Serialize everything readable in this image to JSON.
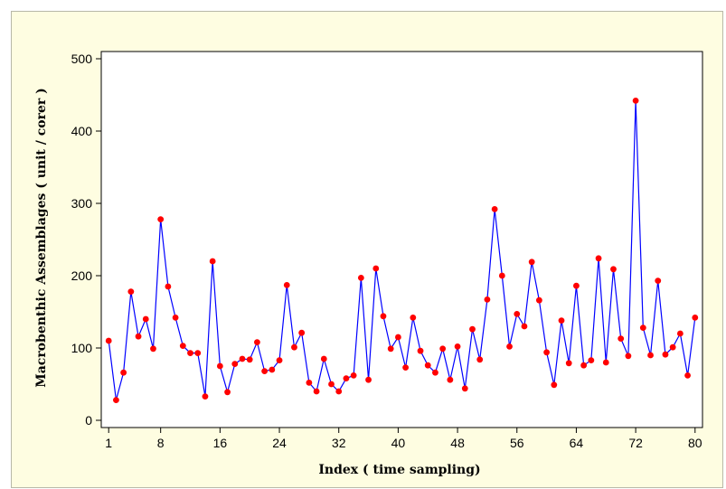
{
  "chart_data": {
    "type": "line",
    "title": "",
    "xlabel": "Index ( time sampling)",
    "ylabel": "Macrobenthic Assemblages ( unit / corer )",
    "xlim": [
      0,
      81
    ],
    "ylim": [
      -10,
      510
    ],
    "x_ticks": [
      1,
      8,
      16,
      24,
      32,
      40,
      48,
      56,
      64,
      72,
      80
    ],
    "y_ticks": [
      0,
      100,
      200,
      300,
      400,
      500
    ],
    "grid": false,
    "legend": "none",
    "series": [
      {
        "line_color": "#0000ff",
        "marker_color": "#ff0000",
        "x": [
          1,
          2,
          3,
          4,
          5,
          6,
          7,
          8,
          9,
          10,
          11,
          12,
          13,
          14,
          15,
          16,
          17,
          18,
          19,
          20,
          21,
          22,
          23,
          24,
          25,
          26,
          27,
          28,
          29,
          30,
          31,
          32,
          33,
          34,
          35,
          36,
          37,
          38,
          39,
          40,
          41,
          42,
          43,
          44,
          45,
          46,
          47,
          48,
          49,
          50,
          51,
          52,
          53,
          54,
          55,
          56,
          57,
          58,
          59,
          60,
          61,
          62,
          63,
          64,
          65,
          66,
          67,
          68,
          69,
          70,
          71,
          72,
          73,
          74,
          75,
          76,
          77,
          78,
          79,
          80
        ],
        "values": [
          110,
          28,
          66,
          178,
          116,
          140,
          99,
          278,
          185,
          142,
          103,
          93,
          93,
          33,
          220,
          75,
          39,
          78,
          85,
          84,
          108,
          68,
          70,
          83,
          187,
          101,
          121,
          52,
          40,
          85,
          50,
          40,
          58,
          62,
          197,
          56,
          210,
          144,
          99,
          115,
          73,
          142,
          96,
          76,
          66,
          99,
          56,
          102,
          44,
          126,
          84,
          167,
          292,
          200,
          102,
          147,
          130,
          219,
          166,
          94,
          49,
          138,
          79,
          186,
          76,
          83,
          224,
          80,
          209,
          113,
          89,
          442,
          128,
          90,
          193,
          91,
          101,
          120,
          62,
          142
        ]
      }
    ]
  }
}
